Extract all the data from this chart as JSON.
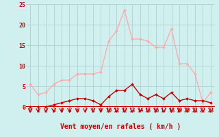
{
  "hours": [
    0,
    1,
    2,
    3,
    4,
    5,
    6,
    7,
    8,
    9,
    10,
    11,
    12,
    13,
    14,
    15,
    16,
    17,
    18,
    19,
    20,
    21,
    22,
    23
  ],
  "wind_avg": [
    0,
    0,
    0,
    0.5,
    1,
    1.5,
    2,
    2,
    1.5,
    0.5,
    2.5,
    4,
    4,
    5.5,
    3,
    2,
    3,
    2,
    3.5,
    1.5,
    2,
    1.5,
    1.5,
    1
  ],
  "wind_gust": [
    5.5,
    3,
    3.5,
    5.5,
    6.5,
    6.5,
    8,
    8,
    8,
    8.5,
    16,
    18.5,
    23.5,
    16.5,
    16.5,
    16,
    14.5,
    14.5,
    19,
    10.5,
    10.5,
    8,
    1,
    3.5
  ],
  "color_avg": "#cc0000",
  "color_gust": "#ffaaaa",
  "bg_color": "#d0f0f0",
  "grid_color": "#aacccc",
  "xlabel": "Vent moyen/en rafales ( km/h )",
  "ylim": [
    0,
    25
  ],
  "yticks": [
    0,
    5,
    10,
    15,
    20,
    25
  ]
}
